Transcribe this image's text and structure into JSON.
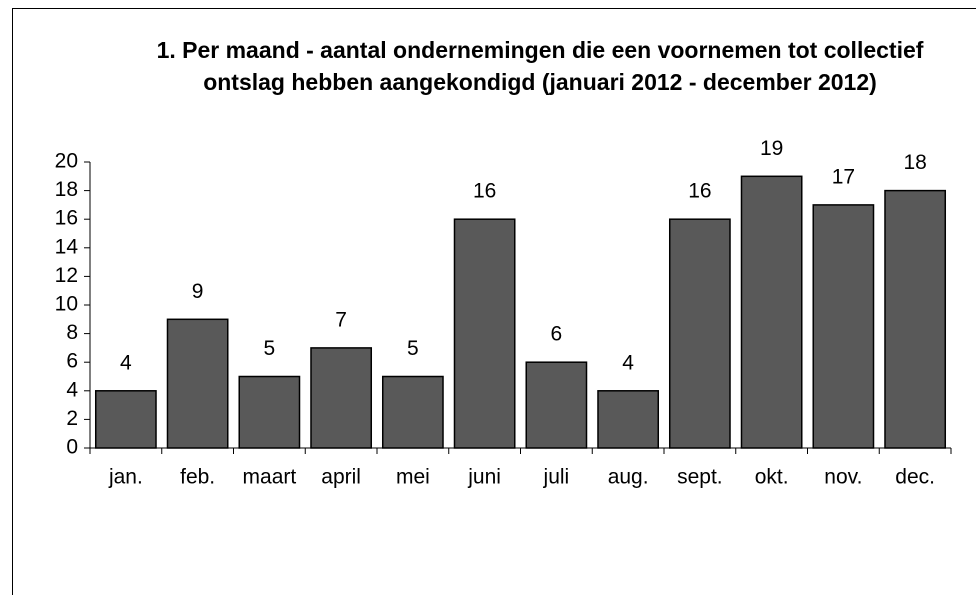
{
  "chart_data": {
    "type": "bar",
    "title": "1. Per maand - aantal ondernemingen die een voornemen tot collectief ontslag hebben aangekondigd (januari 2012 - december 2012)",
    "categories": [
      "jan.",
      "feb.",
      "maart",
      "april",
      "mei",
      "juni",
      "juli",
      "aug.",
      "sept.",
      "okt.",
      "nov.",
      "dec."
    ],
    "values": [
      4,
      9,
      5,
      7,
      5,
      16,
      6,
      4,
      16,
      19,
      17,
      18
    ],
    "color": "#595959",
    "ylim": [
      0,
      20
    ],
    "yticks": [
      0,
      2,
      4,
      6,
      8,
      10,
      12,
      14,
      16,
      18,
      20
    ],
    "grid": false
  }
}
